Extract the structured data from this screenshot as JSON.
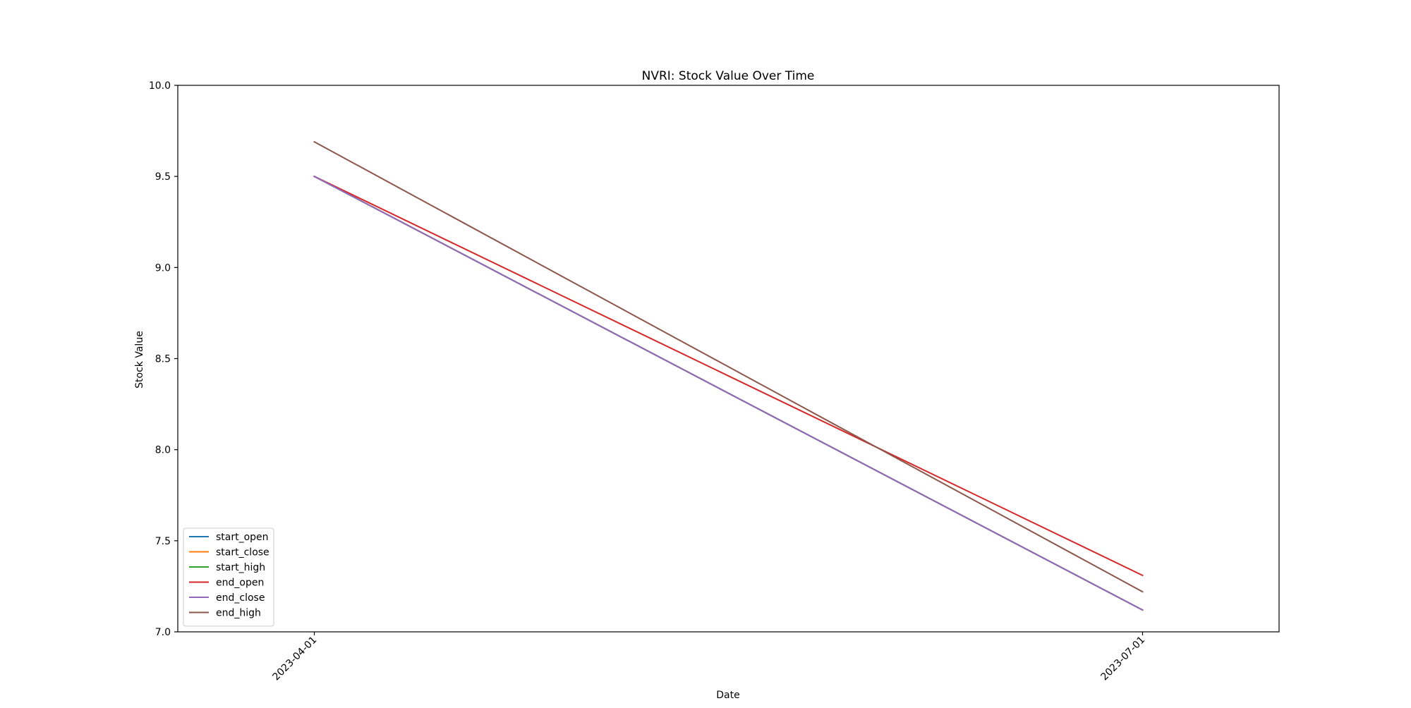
{
  "chart_data": {
    "type": "line",
    "title": "NVRI: Stock Value Over Time",
    "xlabel": "Date",
    "ylabel": "Stock Value",
    "x": [
      "2023-04-01",
      "2023-07-01"
    ],
    "xlim": [
      "2023-03-17",
      "2023-07-16"
    ],
    "ylim": [
      7.0,
      10.0
    ],
    "yticks": [
      7.0,
      7.5,
      8.0,
      8.5,
      9.0,
      9.5,
      10.0
    ],
    "ytick_labels": [
      "7.0",
      "7.5",
      "8.0",
      "8.5",
      "9.0",
      "9.5",
      "10.0"
    ],
    "xtick_labels": [
      "2023-04-01",
      "2023-07-01"
    ],
    "grid": false,
    "legend_placement": "bottom-left",
    "series": [
      {
        "name": "start_open",
        "values": [
          9.5,
          7.12
        ],
        "color": "#1f77b4"
      },
      {
        "name": "start_close",
        "values": [
          9.5,
          7.12
        ],
        "color": "#ff7f0e"
      },
      {
        "name": "start_high",
        "values": [
          9.5,
          7.12
        ],
        "color": "#2ca02c"
      },
      {
        "name": "end_open",
        "values": [
          9.5,
          7.31
        ],
        "color": "#d62728"
      },
      {
        "name": "end_close",
        "values": [
          9.5,
          7.12
        ],
        "color": "#9467bd"
      },
      {
        "name": "end_high",
        "values": [
          9.69,
          7.22
        ],
        "color": "#8c564b"
      }
    ]
  }
}
